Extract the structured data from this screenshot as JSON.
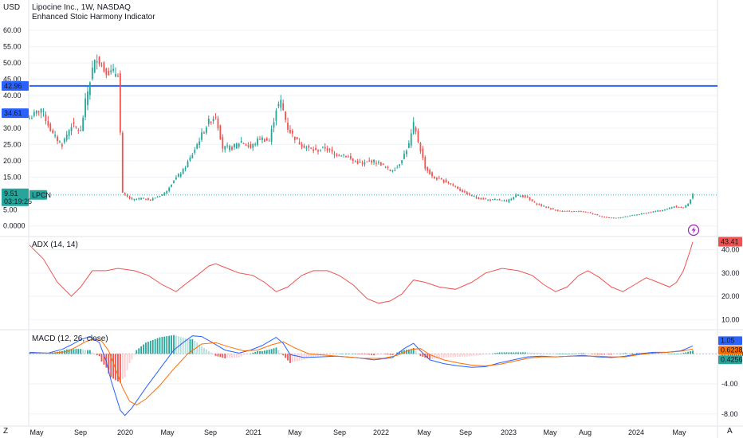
{
  "header": {
    "currency": "USD",
    "title": "Lipocine Inc., 1W, NASDAQ",
    "indicator": "Enhanced Stoic Harmony Indicator"
  },
  "colors": {
    "up": "#26a69a",
    "down": "#ef5350",
    "hline": "#2962ff",
    "adx": "#ef5350",
    "macd": "#2962ff",
    "signal": "#ff6d00",
    "grid": "#f0f3fa",
    "separator": "#e0e3eb"
  },
  "price_labels": {
    "hline": "42.96",
    "marker": "34.61",
    "last": "9.51",
    "countdown": "03:19:25",
    "symbol": "LPCN"
  },
  "x_labels": [
    "May",
    "Sep",
    "2020",
    "May",
    "Sep",
    "2021",
    "May",
    "Sep",
    "2022",
    "May",
    "Sep",
    "2023",
    "May",
    "Aug",
    "2024",
    "May"
  ],
  "bottom_corner": {
    "left": "Z",
    "right": "A"
  },
  "chart_data": [
    {
      "type": "candlestick",
      "title": "Lipocine Inc., 1W, NASDAQ",
      "ylabel": "USD",
      "ylim": [
        -3,
        62
      ],
      "y_ticks": [
        "0.0000",
        "5.00",
        "10.00",
        "15.00",
        "20.00",
        "25.00",
        "30.00",
        "35.00",
        "40.00",
        "45.00",
        "50.00",
        "55.00",
        "60.00"
      ],
      "y_tick_values": [
        0,
        5,
        10,
        15,
        20,
        25,
        30,
        35,
        40,
        45,
        50,
        55,
        60
      ],
      "hline": 42.96,
      "last_price": 9.51,
      "marker_price": 34.61,
      "x_ticks": [
        "May",
        "Sep",
        "2020",
        "May",
        "Sep",
        "2021",
        "May",
        "Sep",
        "2022",
        "May",
        "Sep",
        "2023",
        "May",
        "Aug",
        "2024",
        "May"
      ],
      "anchors": [
        [
          0,
          33
        ],
        [
          5,
          36
        ],
        [
          10,
          28
        ],
        [
          14,
          25
        ],
        [
          18,
          31
        ],
        [
          22,
          29
        ],
        [
          24,
          38
        ],
        [
          27,
          48
        ],
        [
          29,
          52
        ],
        [
          32,
          48
        ],
        [
          35,
          47
        ],
        [
          38,
          47
        ],
        [
          40,
          10
        ],
        [
          44,
          8
        ],
        [
          48,
          8.5
        ],
        [
          52,
          8
        ],
        [
          55,
          9
        ],
        [
          58,
          10
        ],
        [
          62,
          14
        ],
        [
          66,
          17
        ],
        [
          70,
          22
        ],
        [
          74,
          28
        ],
        [
          77,
          32
        ],
        [
          80,
          34
        ],
        [
          83,
          24
        ],
        [
          87,
          24
        ],
        [
          91,
          26
        ],
        [
          95,
          24
        ],
        [
          99,
          27
        ],
        [
          103,
          26
        ],
        [
          106,
          36
        ],
        [
          108,
          38
        ],
        [
          111,
          30
        ],
        [
          115,
          26
        ],
        [
          119,
          24
        ],
        [
          123,
          23
        ],
        [
          127,
          24
        ],
        [
          131,
          22
        ],
        [
          135,
          22
        ],
        [
          139,
          20
        ],
        [
          143,
          19
        ],
        [
          147,
          20
        ],
        [
          151,
          19
        ],
        [
          155,
          17
        ],
        [
          158,
          18
        ],
        [
          161,
          22
        ],
        [
          163,
          25
        ],
        [
          165,
          31
        ],
        [
          167,
          26
        ],
        [
          170,
          18
        ],
        [
          173,
          15
        ],
        [
          177,
          14
        ],
        [
          181,
          13
        ],
        [
          185,
          11
        ],
        [
          189,
          9.5
        ],
        [
          193,
          8.5
        ],
        [
          197,
          8
        ],
        [
          201,
          8
        ],
        [
          205,
          7.5
        ],
        [
          209,
          9.5
        ],
        [
          213,
          9
        ],
        [
          217,
          7
        ],
        [
          221,
          6
        ],
        [
          225,
          5
        ],
        [
          229,
          4.5
        ],
        [
          233,
          4.5
        ],
        [
          237,
          4.5
        ],
        [
          241,
          4
        ],
        [
          245,
          3
        ],
        [
          249,
          2.5
        ],
        [
          253,
          2.5
        ],
        [
          257,
          3
        ],
        [
          261,
          3.5
        ],
        [
          265,
          4
        ],
        [
          269,
          4.5
        ],
        [
          273,
          5
        ],
        [
          277,
          6
        ],
        [
          281,
          5.5
        ],
        [
          283,
          7
        ],
        [
          285,
          9.51
        ]
      ],
      "candle_count": 286
    },
    {
      "type": "line",
      "title": "ADX (14, 14)",
      "ylim": [
        6,
        45
      ],
      "y_ticks": [
        "10.00",
        "20.00",
        "30.00",
        "40.00"
      ],
      "y_tick_values": [
        10,
        20,
        30,
        40
      ],
      "last_value": "43.41",
      "series": [
        {
          "name": "ADX (14, 14)",
          "points": [
            [
              0,
              42
            ],
            [
              6,
              36
            ],
            [
              12,
              26
            ],
            [
              18,
              20
            ],
            [
              22,
              24
            ],
            [
              27,
              31
            ],
            [
              33,
              31
            ],
            [
              38,
              32
            ],
            [
              45,
              31
            ],
            [
              51,
              29
            ],
            [
              57,
              25
            ],
            [
              63,
              22
            ],
            [
              68,
              26
            ],
            [
              72,
              29
            ],
            [
              77,
              33
            ],
            [
              80,
              34
            ],
            [
              85,
              32
            ],
            [
              90,
              30
            ],
            [
              96,
              29
            ],
            [
              101,
              26
            ],
            [
              106,
              22
            ],
            [
              111,
              24
            ],
            [
              117,
              29
            ],
            [
              122,
              31
            ],
            [
              128,
              31
            ],
            [
              133,
              29
            ],
            [
              139,
              25
            ],
            [
              145,
              19
            ],
            [
              150,
              17
            ],
            [
              155,
              18
            ],
            [
              160,
              21
            ],
            [
              165,
              27
            ],
            [
              170,
              26
            ],
            [
              176,
              24
            ],
            [
              183,
              23
            ],
            [
              190,
              26
            ],
            [
              196,
              30
            ],
            [
              203,
              32
            ],
            [
              210,
              31
            ],
            [
              216,
              29
            ],
            [
              221,
              25
            ],
            [
              226,
              22
            ],
            [
              231,
              24
            ],
            [
              236,
              29
            ],
            [
              240,
              31
            ],
            [
              245,
              28
            ],
            [
              250,
              24
            ],
            [
              255,
              22
            ],
            [
              260,
              25
            ],
            [
              265,
              28
            ],
            [
              270,
              26
            ],
            [
              275,
              24
            ],
            [
              278,
              26
            ],
            [
              281,
              31
            ],
            [
              284,
              40
            ],
            [
              285,
              43.41
            ]
          ]
        }
      ]
    },
    {
      "type": "line",
      "title": "MACD (12, 26, close)",
      "ylim": [
        -9.5,
        3
      ],
      "y_ticks": [
        "0.0000",
        "-4.00",
        "-8.00"
      ],
      "y_tick_values": [
        0,
        -4,
        -8
      ],
      "last_values": [
        "1.05",
        "0.6238",
        "0.4256"
      ],
      "series": [
        {
          "name": "MACD",
          "points": [
            [
              0,
              0.2
            ],
            [
              8,
              0.1
            ],
            [
              14,
              0.6
            ],
            [
              18,
              1.2
            ],
            [
              22,
              1.9
            ],
            [
              26,
              2.3
            ],
            [
              30,
              1.5
            ],
            [
              33,
              -1
            ],
            [
              35,
              -3.5
            ],
            [
              37,
              -5.5
            ],
            [
              39,
              -7.5
            ],
            [
              41,
              -8.2
            ],
            [
              44,
              -7.2
            ],
            [
              50,
              -4.5
            ],
            [
              56,
              -2
            ],
            [
              62,
              0.5
            ],
            [
              66,
              1.5
            ],
            [
              70,
              2.4
            ],
            [
              74,
              2.3
            ],
            [
              78,
              1.6
            ],
            [
              84,
              0.5
            ],
            [
              90,
              0.1
            ],
            [
              95,
              0.5
            ],
            [
              100,
              1.1
            ],
            [
              106,
              2.2
            ],
            [
              109,
              1.4
            ],
            [
              112,
              -0.1
            ],
            [
              118,
              -0.5
            ],
            [
              125,
              -0.4
            ],
            [
              132,
              -0.3
            ],
            [
              140,
              -0.5
            ],
            [
              148,
              -0.8
            ],
            [
              156,
              -0.5
            ],
            [
              161,
              0.7
            ],
            [
              165,
              1.4
            ],
            [
              168,
              0.4
            ],
            [
              172,
              -0.8
            ],
            [
              178,
              -1.3
            ],
            [
              184,
              -1.6
            ],
            [
              190,
              -1.8
            ],
            [
              196,
              -1.7
            ],
            [
              202,
              -1.2
            ],
            [
              208,
              -0.8
            ],
            [
              214,
              -0.4
            ],
            [
              220,
              -0.3
            ],
            [
              226,
              -0.4
            ],
            [
              232,
              -0.3
            ],
            [
              238,
              -0.2
            ],
            [
              244,
              -0.4
            ],
            [
              250,
              -0.5
            ],
            [
              256,
              -0.3
            ],
            [
              262,
              0
            ],
            [
              268,
              0.2
            ],
            [
              274,
              0.2
            ],
            [
              280,
              0.4
            ],
            [
              285,
              1.05
            ]
          ]
        },
        {
          "name": "Signal",
          "points": [
            [
              0,
              0.1
            ],
            [
              10,
              0.1
            ],
            [
              16,
              0.3
            ],
            [
              20,
              0.9
            ],
            [
              24,
              1.6
            ],
            [
              28,
              2
            ],
            [
              31,
              1.7
            ],
            [
              34,
              0.4
            ],
            [
              37,
              -2
            ],
            [
              40,
              -4.5
            ],
            [
              43,
              -6.3
            ],
            [
              46,
              -6.8
            ],
            [
              50,
              -6
            ],
            [
              56,
              -4.2
            ],
            [
              62,
              -2
            ],
            [
              68,
              0
            ],
            [
              74,
              1.3
            ],
            [
              80,
              1.5
            ],
            [
              86,
              0.9
            ],
            [
              92,
              0.4
            ],
            [
              98,
              0.5
            ],
            [
              104,
              1.2
            ],
            [
              109,
              1.6
            ],
            [
              114,
              0.8
            ],
            [
              120,
              0
            ],
            [
              128,
              -0.2
            ],
            [
              136,
              -0.4
            ],
            [
              144,
              -0.6
            ],
            [
              152,
              -0.6
            ],
            [
              158,
              -0.2
            ],
            [
              164,
              0.6
            ],
            [
              168,
              0.7
            ],
            [
              172,
              -0.1
            ],
            [
              178,
              -0.8
            ],
            [
              184,
              -1.2
            ],
            [
              190,
              -1.5
            ],
            [
              196,
              -1.6
            ],
            [
              202,
              -1.4
            ],
            [
              208,
              -1
            ],
            [
              214,
              -0.6
            ],
            [
              220,
              -0.4
            ],
            [
              226,
              -0.4
            ],
            [
              232,
              -0.3
            ],
            [
              238,
              -0.3
            ],
            [
              244,
              -0.3
            ],
            [
              250,
              -0.4
            ],
            [
              256,
              -0.4
            ],
            [
              262,
              -0.1
            ],
            [
              268,
              0.1
            ],
            [
              274,
              0.2
            ],
            [
              280,
              0.35
            ],
            [
              285,
              0.6238
            ]
          ]
        }
      ]
    }
  ]
}
